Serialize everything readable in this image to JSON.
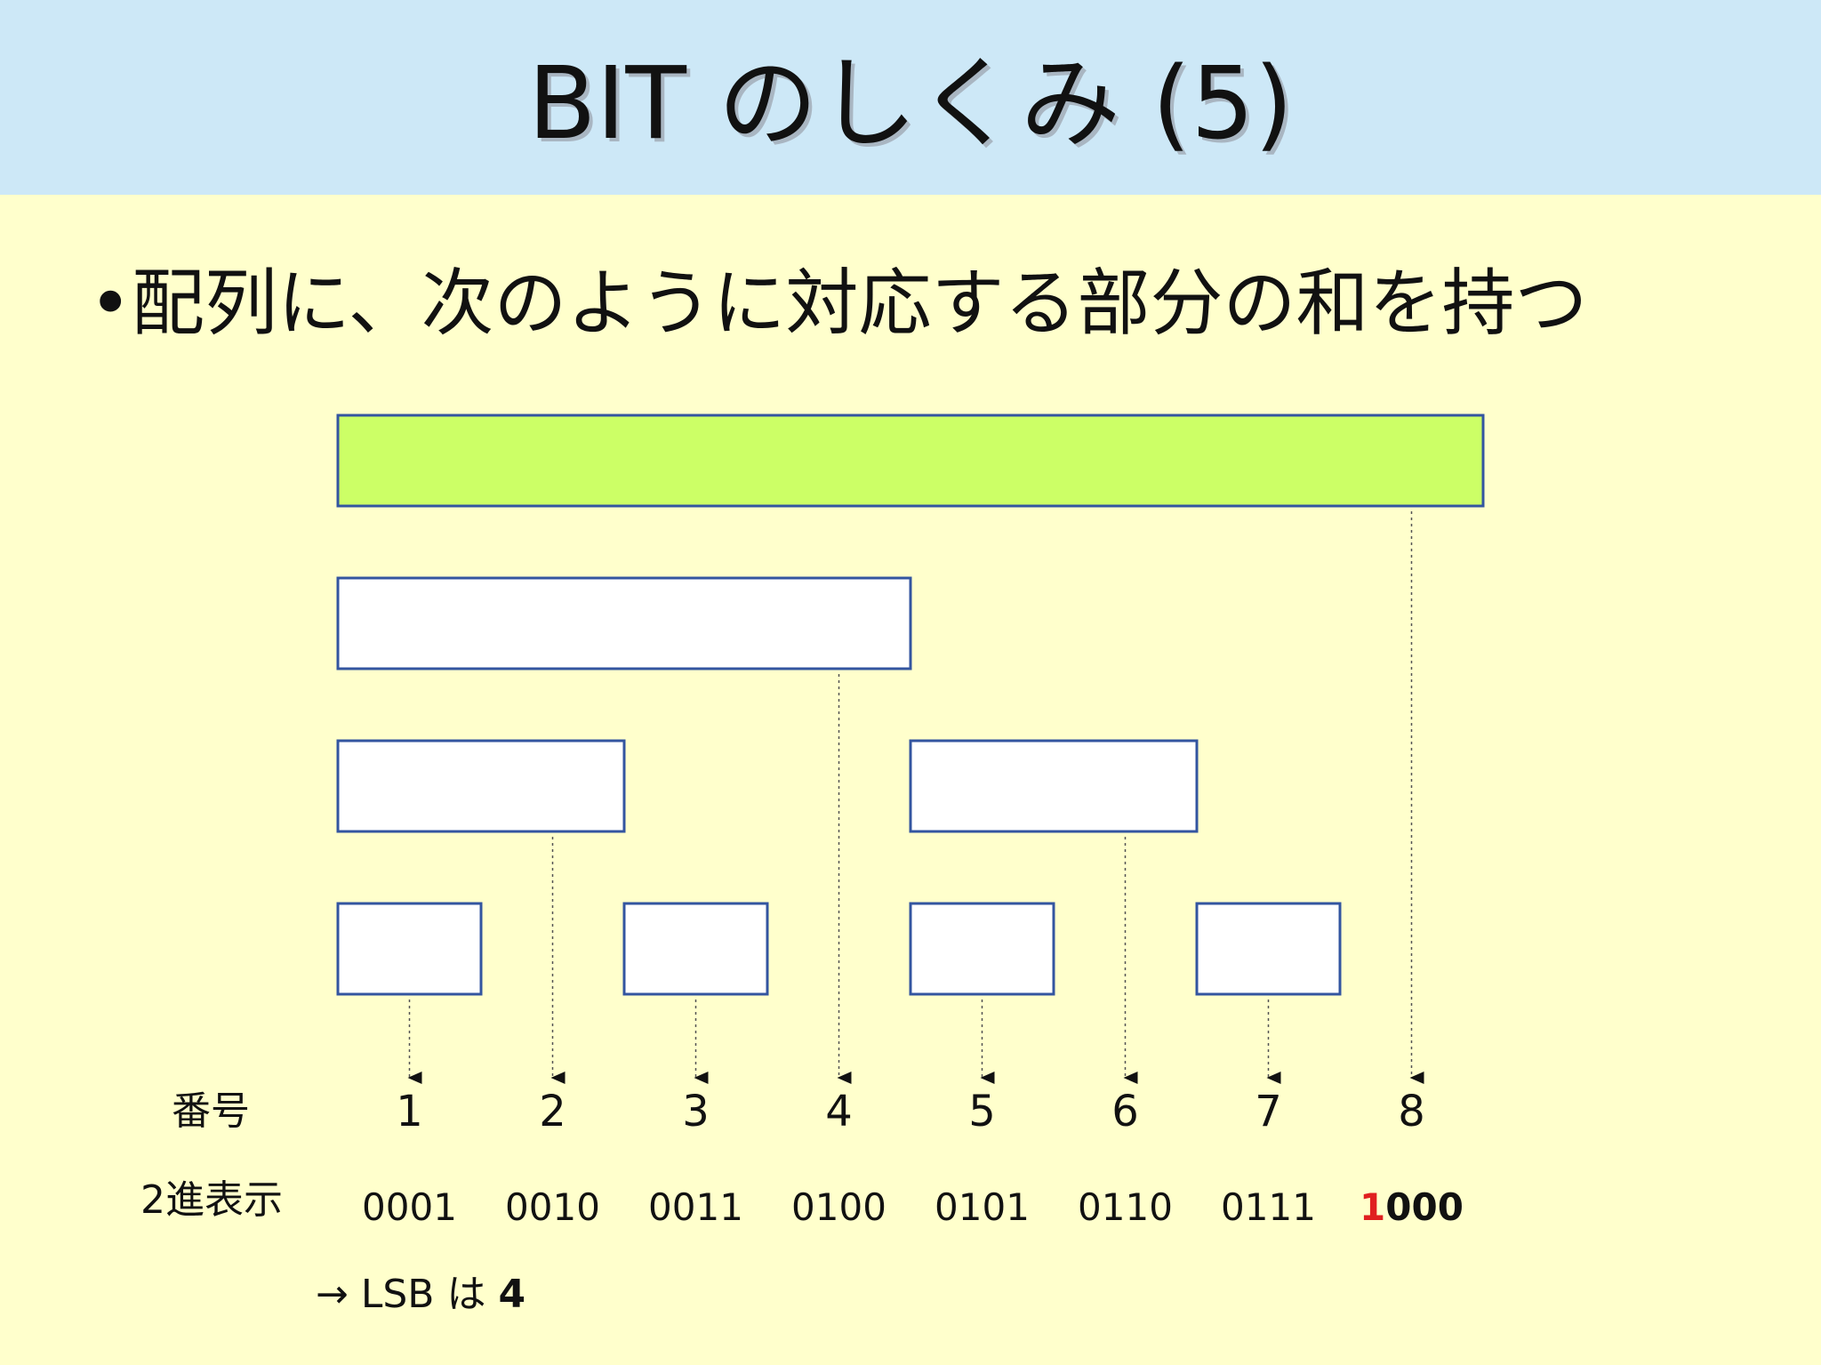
{
  "title": "BIT のしくみ (5)",
  "bullet": {
    "marker": "•",
    "text": "配列に、次のように対応する部分の和を持つ"
  },
  "colors": {
    "header_bg": "#cde8f7",
    "content_bg": "#ffffcc",
    "highlight_fill": "#ccff66",
    "box_stroke": "#3355a0",
    "highlight_digit": "#e02020"
  },
  "labels": {
    "number_row": "番号",
    "binary_row": "2進表示"
  },
  "columns": [
    {
      "num": "1",
      "bin": "0001"
    },
    {
      "num": "2",
      "bin": "0010"
    },
    {
      "num": "3",
      "bin": "0011"
    },
    {
      "num": "4",
      "bin": "0100"
    },
    {
      "num": "5",
      "bin": "0101"
    },
    {
      "num": "6",
      "bin": "0110"
    },
    {
      "num": "7",
      "bin": "0111"
    },
    {
      "num": "8",
      "bin_highlight": "1",
      "bin_rest": "000"
    }
  ],
  "ranges": [
    {
      "from": 1,
      "to": 8,
      "highlighted": true
    },
    {
      "from": 1,
      "to": 4,
      "highlighted": false
    },
    {
      "from": 1,
      "to": 2,
      "highlighted": false
    },
    {
      "from": 5,
      "to": 6,
      "highlighted": false
    },
    {
      "from": 1,
      "to": 1,
      "highlighted": false
    },
    {
      "from": 3,
      "to": 3,
      "highlighted": false
    },
    {
      "from": 5,
      "to": 5,
      "highlighted": false
    },
    {
      "from": 7,
      "to": 7,
      "highlighted": false
    }
  ],
  "note": {
    "prefix": "→ LSB は ",
    "value": "4"
  }
}
